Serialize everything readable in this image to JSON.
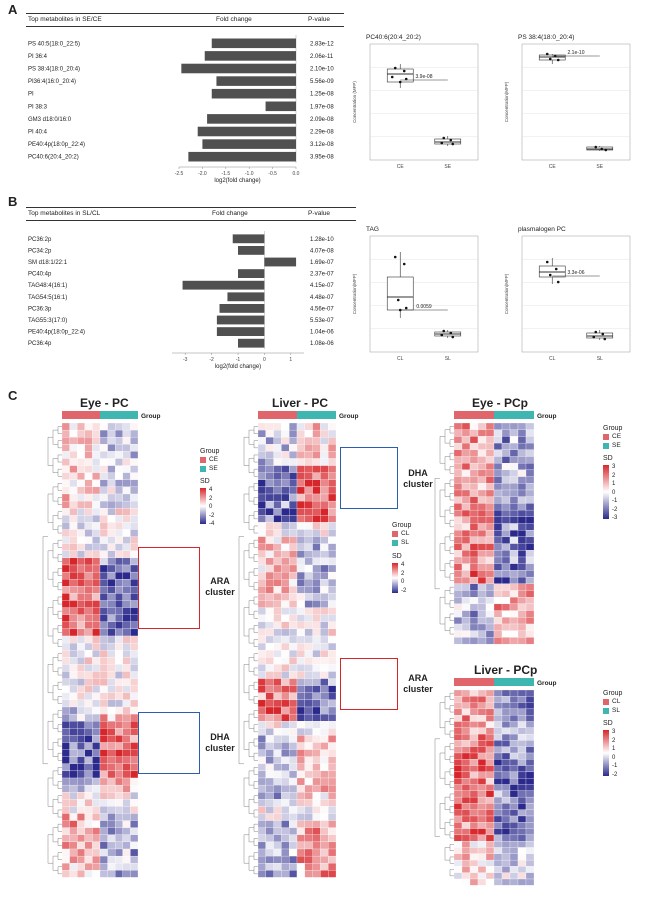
{
  "panel_labels": {
    "a": "A",
    "b": "B",
    "c": "C"
  },
  "panel_a": {
    "headers": {
      "metabolites": "Top metabolites in SE/CE",
      "fold": "Fold change",
      "pvalue": "P-value"
    },
    "xlabel": "log2(fold change)",
    "ticks": [
      "-2.5",
      "-2.0",
      "-1.5",
      "-1.0",
      "-0.5",
      "0.0"
    ]
  },
  "panel_b": {
    "headers": {
      "metabolites": "Top metabolites in SL/CL",
      "fold": "Fold change",
      "pvalue": "P-value"
    },
    "xlabel": "log2(fold change)",
    "ticks": [
      "-3",
      "-2",
      "-1",
      "0",
      "1"
    ]
  },
  "boxplots": {
    "a1": {
      "title": "PC40:6(20:4_20:2)",
      "sig": "3.9e-08",
      "ylabel": "Concentration (MFP)",
      "groups": [
        "CE",
        "SE"
      ]
    },
    "a2": {
      "title": "PS 38:4(18:0_20:4)",
      "sig": "2.1e-10",
      "ylabel": "Concentration(MFP)",
      "groups": [
        "CE",
        "SE"
      ]
    },
    "b1": {
      "title": "TAG",
      "sig": "0.0059",
      "ylabel": "Concentration(MFP)",
      "groups": [
        "CL",
        "SL"
      ]
    },
    "b2": {
      "title": "plasmalogen PC",
      "sig": "3.3e-06",
      "ylabel": "Concentration(MFP)",
      "groups": [
        "CL",
        "SL"
      ]
    }
  },
  "heatmaps": {
    "eye_pc": {
      "title": "Eye - PC",
      "group_label": "Group",
      "legend_groups": [
        "CE",
        "SE"
      ],
      "sd_label": "SD",
      "sd_ticks": [
        "4",
        "2",
        "0",
        "-2",
        "-4"
      ]
    },
    "liver_pc": {
      "title": "Liver - PC",
      "group_label": "Group",
      "legend_groups": [
        "CL",
        "SL"
      ],
      "sd_label": "SD",
      "sd_ticks": [
        "4",
        "2",
        "0",
        "-2"
      ]
    },
    "eye_pcp": {
      "title": "Eye - PCp",
      "group_label": "Group",
      "legend_groups": [
        "CE",
        "SE"
      ],
      "sd_label": "SD",
      "sd_ticks": [
        "3",
        "2",
        "1",
        "0",
        "-1",
        "-2",
        "-3"
      ]
    },
    "liver_pcp": {
      "title": "Liver - PCp",
      "group_label": "Group",
      "legend_groups": [
        "CL",
        "SL"
      ],
      "sd_label": "SD",
      "sd_ticks": [
        "3",
        "2",
        "1",
        "0",
        "-1",
        "-2"
      ]
    }
  },
  "clusters": {
    "eye_ara": "ARA\ncluster",
    "eye_dha": "DHA\ncluster",
    "liver_dha": "DHA\ncluster",
    "liver_ara": "ARA\ncluster"
  },
  "colors": {
    "control": "#e0666b",
    "treated": "#3fb7b0",
    "high": "#d7262b",
    "low": "#2b2a8c",
    "ara_box": "#d7262b",
    "dha_box": "#2b5db0"
  },
  "chart_data": [
    {
      "type": "bar",
      "title": "Top metabolites in SE/CE",
      "xlabel": "log2(fold change)",
      "xlim": [
        -2.5,
        0.0
      ],
      "categories": [
        "PS 40:5(18:0_22:5)",
        "PI 36:4",
        "PS 38:4(18:0_20:4)",
        "PI36:4(16:0_20:4)",
        "PI",
        "PI 38:3",
        "GM3 d18:0/16:0",
        "PI 40:4",
        "PE40:4p(18:0p_22:4)",
        "PC40:6(20:4_20:2)"
      ],
      "values": [
        -1.8,
        -1.95,
        -2.45,
        -1.7,
        -1.8,
        -0.65,
        -1.9,
        -2.1,
        -2.0,
        -2.3
      ],
      "pvalues": [
        "2.83e-12",
        "2.06e-11",
        "2.10e-10",
        "5.56e-09",
        "1.25e-08",
        "1.97e-08",
        "2.09e-08",
        "2.29e-08",
        "3.12e-08",
        "3.95e-08"
      ]
    },
    {
      "type": "bar",
      "title": "Top metabolites in SL/CL",
      "xlabel": "log2(fold change)",
      "xlim": [
        -3.5,
        1.5
      ],
      "categories": [
        "PC36:2p",
        "PC34:2p",
        "SM d18:1/22:1",
        "PC40:4p",
        "TAG48:4(16:1)",
        "TAG54:5(16:1)",
        "PC36:3p",
        "TAG55:3(17:0)",
        "PE40:4p(18:0p_22:4)",
        "PC36:4p"
      ],
      "values": [
        -1.2,
        -1.0,
        1.2,
        -1.0,
        -3.1,
        -1.4,
        -1.7,
        -1.8,
        -1.8,
        -1.0
      ],
      "pvalues": [
        "1.28e-10",
        "4.07e-08",
        "1.69e-07",
        "2.37e-07",
        "4.15e-07",
        "4.48e-07",
        "4.56e-07",
        "5.53e-07",
        "1.04e-06",
        "1.08e-06"
      ]
    }
  ]
}
